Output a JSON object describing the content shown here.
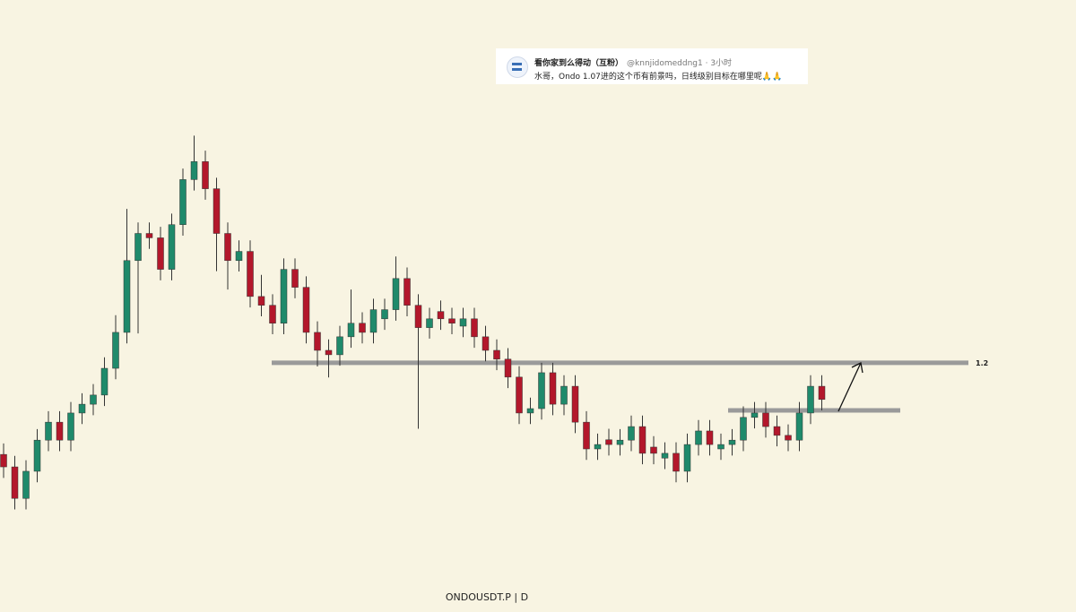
{
  "tweet": {
    "name": "看你家到么得动",
    "badge": "（互粉）",
    "handle": "@knnjidomeddng1 · 3小时",
    "text": "水哥，Ondo 1.07进的这个币有前景吗，日线级别目标在哪里呢🙏🙏"
  },
  "chart_data": {
    "type": "candlestick",
    "symbol_label": "ONDOUSDT.P | D",
    "ylim": [
      0.52,
      2.19
    ],
    "up_color": "#1f8a6b",
    "down_color": "#b3172b",
    "level_color": "#9a9a9a",
    "levels": [
      {
        "value": 1.2,
        "label": "1.2"
      },
      {
        "value": 1.07
      }
    ],
    "open": [
      0.95,
      0.916,
      0.83,
      0.904,
      0.989,
      1.038,
      0.989,
      1.063,
      1.087,
      1.112,
      1.185,
      1.283,
      1.479,
      1.553,
      1.541,
      1.455,
      1.577,
      1.7,
      1.749,
      1.675,
      1.553,
      1.479,
      1.504,
      1.381,
      1.357,
      1.308,
      1.455,
      1.406,
      1.283,
      1.234,
      1.222,
      1.271,
      1.308,
      1.283,
      1.32,
      1.345,
      1.43,
      1.357,
      1.296,
      1.34,
      1.32,
      1.3,
      1.32,
      1.271,
      1.234,
      1.21,
      1.161,
      1.063,
      1.075,
      1.173,
      1.087,
      1.136,
      1.038,
      0.965,
      0.99,
      0.977,
      0.989,
      1.026,
      0.97,
      0.94,
      0.953,
      0.904,
      0.977,
      1.014,
      0.965,
      0.977,
      0.989,
      1.051,
      1.063,
      1.026,
      1.002,
      0.989,
      1.063,
      1.136
    ],
    "high": [
      0.98,
      0.946,
      0.934,
      1.019,
      1.068,
      1.068,
      1.093,
      1.117,
      1.142,
      1.215,
      1.33,
      1.62,
      1.583,
      1.583,
      1.571,
      1.607,
      1.73,
      1.82,
      1.779,
      1.705,
      1.583,
      1.534,
      1.534,
      1.44,
      1.387,
      1.485,
      1.485,
      1.436,
      1.313,
      1.264,
      1.301,
      1.4,
      1.338,
      1.375,
      1.375,
      1.49,
      1.46,
      1.387,
      1.35,
      1.37,
      1.35,
      1.35,
      1.35,
      1.301,
      1.264,
      1.24,
      1.191,
      1.105,
      1.2,
      1.2,
      1.166,
      1.166,
      1.068,
      1.007,
      1.02,
      1.019,
      1.056,
      1.056,
      1.0,
      0.983,
      0.983,
      1.007,
      1.044,
      1.044,
      1.007,
      1.019,
      1.081,
      1.093,
      1.093,
      1.056,
      1.032,
      1.093,
      1.166,
      1.166
    ],
    "low": [
      0.886,
      0.8,
      0.8,
      0.874,
      0.959,
      0.959,
      0.959,
      1.033,
      1.057,
      1.082,
      1.155,
      1.253,
      1.28,
      1.511,
      1.425,
      1.425,
      1.547,
      1.67,
      1.645,
      1.45,
      1.4,
      1.449,
      1.351,
      1.327,
      1.278,
      1.278,
      1.376,
      1.253,
      1.19,
      1.16,
      1.192,
      1.241,
      1.253,
      1.253,
      1.29,
      1.315,
      1.327,
      1.02,
      1.266,
      1.29,
      1.278,
      1.27,
      1.241,
      1.204,
      1.18,
      1.131,
      1.033,
      1.033,
      1.045,
      1.057,
      1.057,
      1.008,
      0.935,
      0.935,
      0.947,
      0.947,
      0.959,
      0.923,
      0.923,
      0.91,
      0.874,
      0.874,
      0.947,
      0.947,
      0.935,
      0.947,
      0.959,
      1.021,
      0.996,
      0.972,
      0.959,
      0.959,
      1.033,
      1.07
    ],
    "close": [
      0.916,
      0.83,
      0.904,
      0.989,
      1.038,
      0.989,
      1.063,
      1.087,
      1.112,
      1.185,
      1.283,
      1.479,
      1.553,
      1.541,
      1.455,
      1.577,
      1.7,
      1.749,
      1.675,
      1.553,
      1.479,
      1.504,
      1.381,
      1.357,
      1.308,
      1.455,
      1.406,
      1.283,
      1.234,
      1.222,
      1.271,
      1.308,
      1.283,
      1.345,
      1.345,
      1.43,
      1.357,
      1.296,
      1.32,
      1.32,
      1.308,
      1.32,
      1.271,
      1.234,
      1.21,
      1.161,
      1.063,
      1.075,
      1.173,
      1.087,
      1.136,
      1.038,
      0.965,
      0.977,
      0.977,
      0.989,
      1.026,
      0.953,
      0.953,
      0.953,
      0.904,
      0.977,
      1.014,
      0.977,
      0.977,
      0.989,
      1.051,
      1.063,
      1.026,
      1.002,
      0.989,
      1.063,
      1.136,
      1.1
    ]
  }
}
